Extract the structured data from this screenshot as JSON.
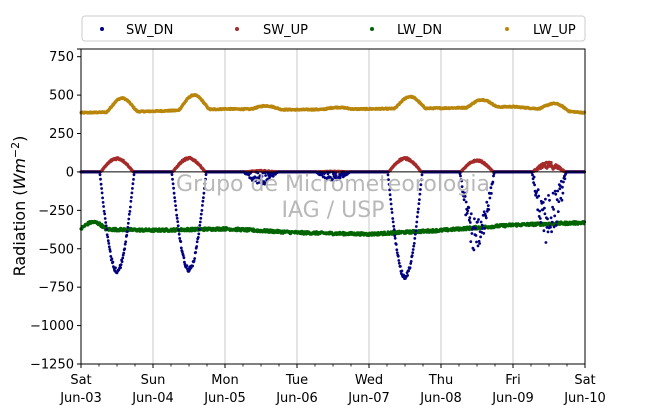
{
  "chart_data": {
    "type": "scatter",
    "ylabel": "Radiation",
    "ylabel_unit_base": "Wm",
    "ylabel_unit_exp": "−2",
    "ylim": [
      -1250,
      800
    ],
    "yticks": [
      800,
      750,
      500,
      250,
      0,
      -250,
      -500,
      -750,
      -1000,
      -1250
    ],
    "ytick_labels": [
      "",
      "750",
      "500",
      "250",
      "0",
      "−250",
      "−500",
      "−750",
      "−1000",
      "−1250"
    ],
    "xlim_days": [
      0,
      7
    ],
    "xticks": [
      {
        "day": "Sat",
        "date": "Jun-03"
      },
      {
        "day": "Sun",
        "date": "Jun-04"
      },
      {
        "day": "Mon",
        "date": "Jun-05"
      },
      {
        "day": "Tue",
        "date": "Jun-06"
      },
      {
        "day": "Wed",
        "date": "Jun-07"
      },
      {
        "day": "Thu",
        "date": "Jun-08"
      },
      {
        "day": "Fri",
        "date": "Jun-09"
      },
      {
        "day": "Sat",
        "date": "Jun-10"
      }
    ],
    "grid_x": true,
    "zero_line": true,
    "legend_position": "top",
    "watermark": [
      "Grupo de Micrometeorologia",
      "IAG / USP"
    ],
    "series": [
      {
        "name": "SW_DN",
        "color": "#000080",
        "peaks": [
          -660,
          -650,
          -60,
          -40,
          -700,
          -520,
          -400
        ]
      },
      {
        "name": "SW_UP",
        "color": "#a52a2a",
        "peaks": [
          95,
          95,
          10,
          5,
          95,
          80,
          65
        ]
      },
      {
        "name": "LW_DN",
        "color": "#006400",
        "base": [
          -370,
          -380,
          -370,
          -395,
          -405,
          -380,
          -345
        ],
        "end": -330
      },
      {
        "name": "LW_UP",
        "color": "#b8860b",
        "base": [
          385,
          395,
          410,
          405,
          410,
          415,
          425
        ],
        "peaks": [
          480,
          500,
          430,
          420,
          490,
          470,
          445
        ],
        "end": 385
      }
    ]
  }
}
